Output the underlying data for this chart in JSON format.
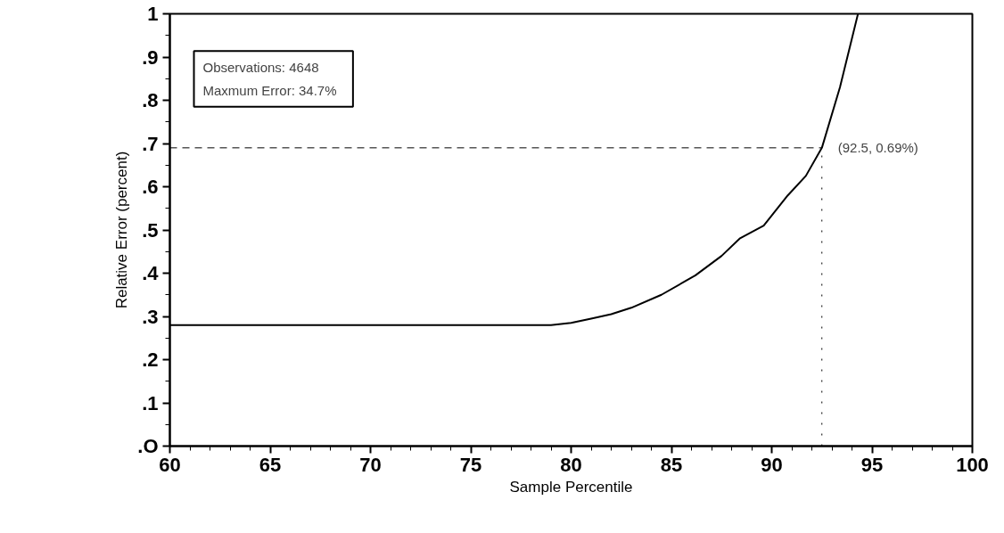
{
  "chart_data": {
    "type": "line",
    "xlabel": "Sample Percentile",
    "ylabel": "Relative Error (percent)",
    "x": [
      60,
      79,
      80,
      81,
      82,
      83,
      84.5,
      86.2,
      87.5,
      88.4,
      89.6,
      90.8,
      91.7,
      92.5,
      93.4,
      94.3
    ],
    "series": [
      {
        "color": "#000000",
        "values": [
          0.28,
          0.28,
          0.285,
          0.295,
          0.305,
          0.32,
          0.35,
          0.395,
          0.44,
          0.48,
          0.51,
          0.58,
          0.625,
          0.69,
          0.83,
          1.0
        ]
      }
    ],
    "xlim": [
      60,
      100
    ],
    "ylim": [
      0,
      1
    ],
    "xticks": [
      60,
      65,
      70,
      75,
      80,
      85,
      90,
      95,
      100,
      {
        "value": 61,
        "label": null
      },
      {
        "value": 62,
        "label": null
      },
      {
        "value": 63,
        "label": null
      },
      {
        "value": 64,
        "label": null
      },
      {
        "value": 66,
        "label": null
      },
      {
        "value": 67,
        "label": null
      },
      {
        "value": 68,
        "label": null
      },
      {
        "value": 69,
        "label": null
      },
      {
        "value": 71,
        "label": null
      },
      {
        "value": 72,
        "label": null
      },
      {
        "value": 73,
        "label": null
      },
      {
        "value": 74,
        "label": null
      },
      {
        "value": 76,
        "label": null
      },
      {
        "value": 77,
        "label": null
      },
      {
        "value": 78,
        "label": null
      },
      {
        "value": 79,
        "label": null
      },
      {
        "value": 81,
        "label": null
      },
      {
        "value": 82,
        "label": null
      },
      {
        "value": 83,
        "label": null
      },
      {
        "value": 84,
        "label": null
      },
      {
        "value": 86,
        "label": null
      },
      {
        "value": 87,
        "label": null
      },
      {
        "value": 88,
        "label": null
      },
      {
        "value": 89,
        "label": null
      },
      {
        "value": 91,
        "label": null
      },
      {
        "value": 92,
        "label": null
      },
      {
        "value": 93,
        "label": null
      },
      {
        "value": 94,
        "label": null
      },
      {
        "value": 96,
        "label": null
      },
      {
        "value": 97,
        "label": null
      },
      {
        "value": 98,
        "label": null
      },
      {
        "value": 99,
        "label": null
      }
    ],
    "yticks": [
      {
        "value": 0,
        "label": ".O"
      },
      {
        "value": 0.1,
        "label": ".1"
      },
      {
        "value": 0.2,
        "label": ".2"
      },
      {
        "value": 0.3,
        "label": ".3"
      },
      {
        "value": 0.4,
        "label": ".4"
      },
      {
        "value": 0.5,
        "label": ".5"
      },
      {
        "value": 0.6,
        "label": ".6"
      },
      {
        "value": 0.7,
        "label": ".7"
      },
      {
        "value": 0.8,
        "label": ".8"
      },
      {
        "value": 0.9,
        "label": ".9"
      },
      1,
      {
        "value": 0.05,
        "label": null
      },
      {
        "value": 0.15,
        "label": null
      },
      {
        "value": 0.25,
        "label": null
      },
      {
        "value": 0.35,
        "label": null
      },
      {
        "value": 0.45,
        "label": null
      },
      {
        "value": 0.55,
        "label": null
      },
      {
        "value": 0.65,
        "label": null
      },
      {
        "value": 0.75,
        "label": null
      },
      {
        "value": 0.85,
        "label": null
      },
      {
        "value": 0.95,
        "label": null
      }
    ],
    "ref_lines": [
      {
        "axis": "y",
        "value": 0.69,
        "line_style": "dashed",
        "color": "#000000"
      },
      {
        "axis": "x",
        "value": 92.5,
        "line_style": "dotted",
        "color": "#000000"
      }
    ],
    "annotations": [
      "Observations:     4648",
      "Maxmum Error:   34.7%",
      {
        "text": "(92.5,  0.69%)",
        "x": 92.5,
        "y": 0.69
      }
    ],
    "grid": false,
    "marker": "none",
    "line_style": "solid"
  }
}
